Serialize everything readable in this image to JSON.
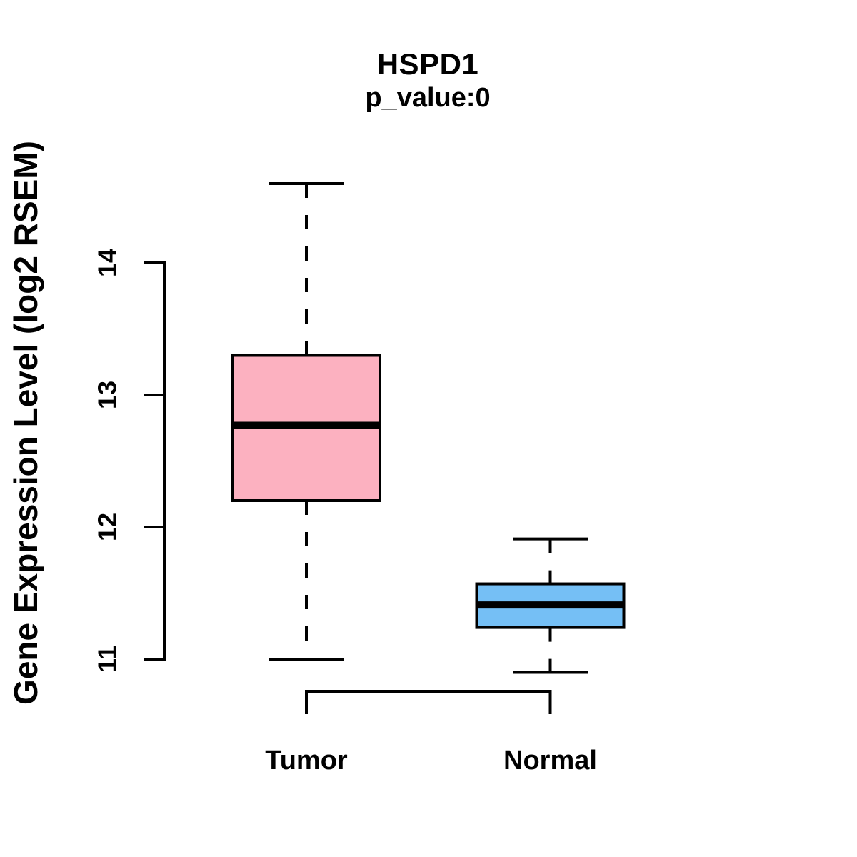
{
  "title": "HSPD1",
  "subtitle": "p_value:0",
  "background_color": "#FFFFFF",
  "line_color": "#000000",
  "chart_data": {
    "type": "boxplot",
    "title": "HSPD1",
    "subtitle": "p_value:0",
    "xlabel": "",
    "ylabel": "Gene Expression Level (log2 RSEM)",
    "categories": [
      "Tumor",
      "Normal"
    ],
    "y_ticks": [
      11,
      12,
      13,
      14
    ],
    "ylim": [
      10.6,
      14.75
    ],
    "grid": false,
    "legend": "none",
    "groups": [
      {
        "name": "Tumor",
        "fill": "#FCB1C0",
        "lower_whisker": 11.0,
        "q1": 12.2,
        "median": 12.77,
        "q3": 13.3,
        "upper_whisker": 14.6,
        "outliers": []
      },
      {
        "name": "Normal",
        "fill": "#75BFF5",
        "lower_whisker": 10.9,
        "q1": 11.24,
        "median": 11.41,
        "q3": 11.57,
        "upper_whisker": 11.91,
        "outliers": []
      }
    ]
  }
}
